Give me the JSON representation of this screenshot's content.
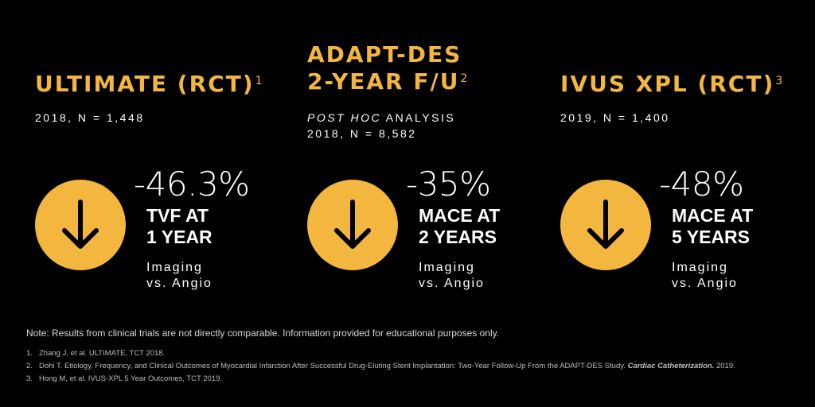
{
  "accent_color": "#f3b63f",
  "background_color": "#000000",
  "studies": [
    {
      "title": "ULTIMATE (RCT)",
      "ref": "1",
      "sub_line1": "2018, N = 1,448",
      "pct": "-46.3%",
      "metric_line1": "TVF AT",
      "metric_line2": "1 YEAR",
      "cmp_line1": "Imaging",
      "cmp_line2": "vs. Angio",
      "icon": "arrow-down-icon"
    },
    {
      "title_line1": "ADAPT-DES",
      "title_line2": "2-YEAR F/U",
      "ref": "2",
      "sub_italic": "POST HOC",
      "sub_rest": " ANALYSIS",
      "sub_line2": "2018, N = 8,582",
      "pct": "-35%",
      "metric_line1": "MACE AT",
      "metric_line2": "2 YEARS",
      "cmp_line1": "Imaging",
      "cmp_line2": "vs. Angio",
      "icon": "arrow-down-icon"
    },
    {
      "title": "IVUS XPL (RCT)",
      "ref": "3",
      "sub_line1": "2019, N = 1,400",
      "pct": "-48%",
      "metric_line1": "MACE AT",
      "metric_line2": "5 YEARS",
      "cmp_line1": "Imaging",
      "cmp_line2": "vs. Angio",
      "icon": "arrow-down-icon"
    }
  ],
  "note": "Note: Results from clinical trials are not directly comparable. Information provided for educational purposes only.",
  "references": [
    {
      "num": "1.",
      "text": "Zhang J, et al. ULTIMATE, TCT 2018."
    },
    {
      "num": "2.",
      "text": "Dohi T. Etiology, Frequency, and Clinical Outcomes of Myocardial Infarction After Successful Drug-Eluting Stent Implantation: Two-Year Follow-Up From the ADAPT-DES Study. ",
      "journal": "Cardiac Catheterization.",
      "tail": " 2019."
    },
    {
      "num": "3.",
      "text": "Hong M, et al. IVUS-XPL 5 Year Outcomes, TCT 2019."
    }
  ]
}
